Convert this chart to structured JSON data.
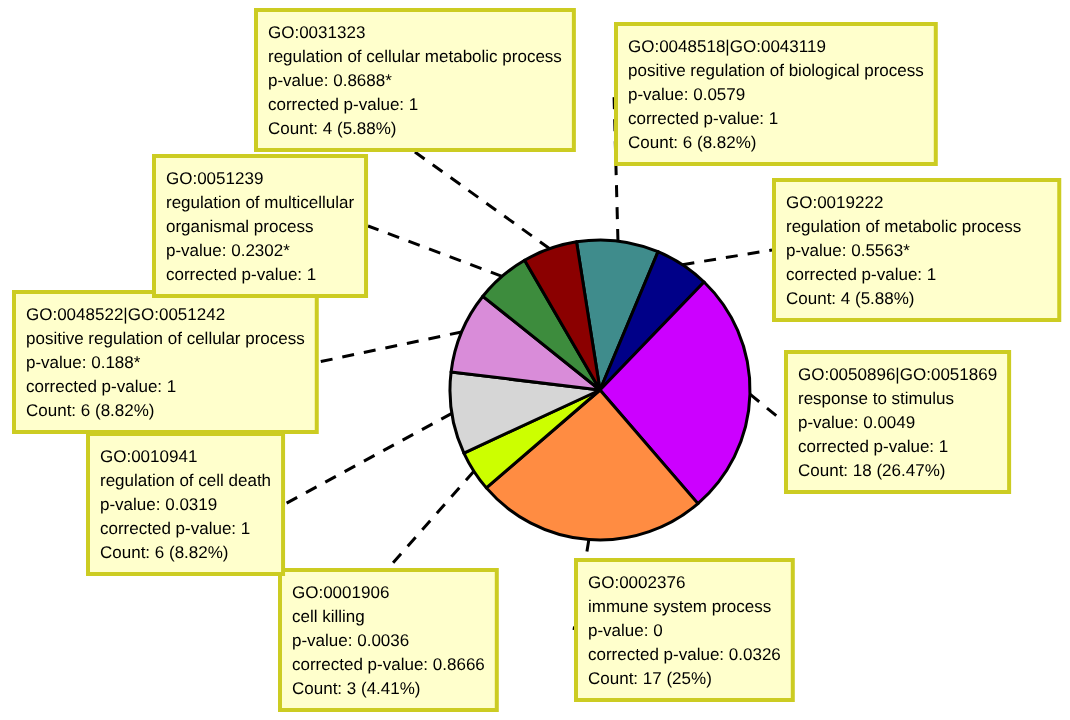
{
  "chart_data": {
    "type": "pie",
    "categories": [
      "GO:0048518|GO:0043119\npositive regulation of biological process\np-value: 0.0579\ncorrected p-value: 1\nCount: 6 (8.82%)",
      "GO:0019222\nregulation of metabolic process\np-value: 0.5563*\ncorrected p-value: 1\nCount: 4 (5.88%)",
      "GO:0050896|GO:0051869\nresponse to stimulus\np-value: 0.0049\ncorrected p-value: 1\nCount: 18 (26.47%)",
      "GO:0002376\nimmune system process\np-value: 0\ncorrected p-value: 0.0326\nCount: 17 (25%)",
      "GO:0001906\ncell killing\np-value: 0.0036\ncorrected p-value: 0.8666\nCount: 3 (4.41%)",
      "GO:0010941\nregulation of cell death\np-value: 0.0319\ncorrected p-value: 1\nCount: 6 (8.82%)",
      "GO:0048522|GO:0051242\npositive regulation of cellular process\np-value: 0.188*\ncorrected p-value: 1\nCount: 6 (8.82%)",
      "GO:0051239\nregulation of multicellular\norganismal process\np-value: 0.2302*\ncorrected p-value: 1",
      "GO:0031323\nregulation of cellular metabolic process\np-value: 0.8688*\ncorrected p-value: 1\nCount: 4 (5.88%)"
    ],
    "values": [
      8.82,
      5.88,
      26.47,
      25,
      4.41,
      8.82,
      8.82,
      5.88,
      5.88
    ],
    "colors": [
      "#3f8c8c",
      "#000088",
      "#cc00ff",
      "#ff8c42",
      "#ccff00",
      "#d6d6d6",
      "#d98cd9",
      "#3d8c3d",
      "#8b0000"
    ],
    "legend": false
  }
}
